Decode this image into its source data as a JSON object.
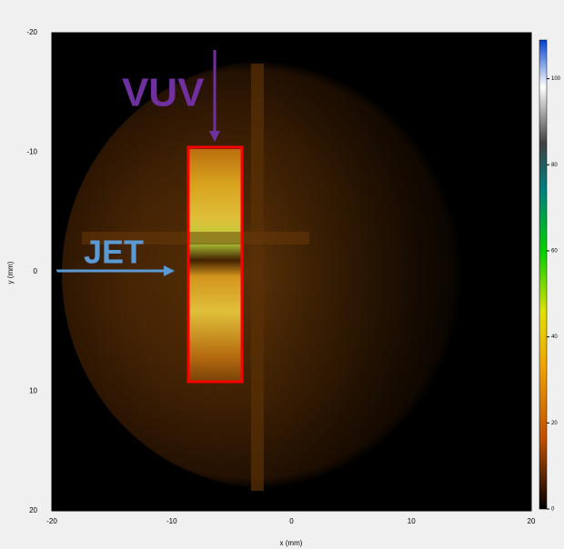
{
  "chart_data": {
    "type": "image",
    "xlabel": "x (mm)",
    "ylabel": "y (mm)",
    "xlim": [
      -20,
      20
    ],
    "ylim": [
      -20,
      20
    ],
    "y_inverted": true,
    "xticks": [
      -20,
      -10,
      0,
      10,
      20
    ],
    "yticks": [
      -20,
      -10,
      0,
      10,
      20
    ],
    "colorbar": {
      "lim": [
        0,
        109
      ],
      "ticks": [
        0,
        20,
        40,
        60,
        80,
        100
      ]
    },
    "annotations": [
      {
        "text": "VUV",
        "color": "#7030a0"
      },
      {
        "text": "JET",
        "color": "#5b9bd5"
      }
    ]
  }
}
